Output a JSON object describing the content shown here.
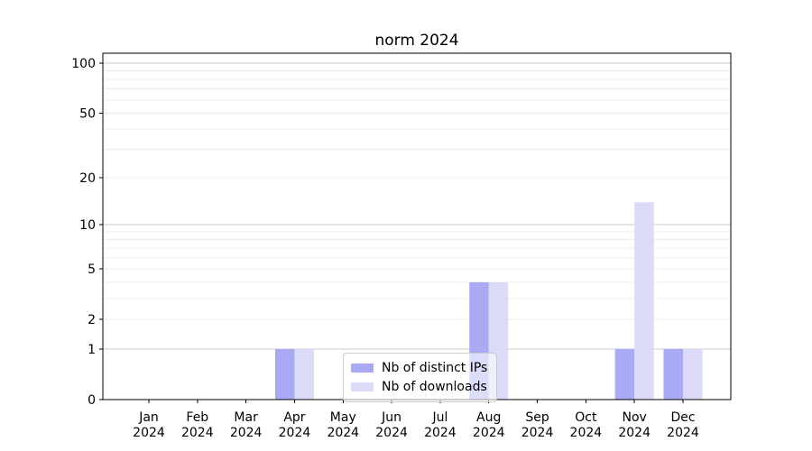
{
  "chart_data": {
    "type": "bar",
    "title": "norm 2024",
    "categories": [
      "Jan",
      "Feb",
      "Mar",
      "Apr",
      "May",
      "Jun",
      "Jul",
      "Aug",
      "Sep",
      "Oct",
      "Nov",
      "Dec"
    ],
    "x_year_label": "2024",
    "series": [
      {
        "name": "Nb of distinct IPs",
        "color": "#a9a9f4",
        "values": [
          0,
          0,
          0,
          1,
          0,
          0,
          0,
          4,
          0,
          0,
          1,
          1
        ]
      },
      {
        "name": "Nb of downloads",
        "color": "#dbdbf8",
        "values": [
          0,
          0,
          0,
          1,
          0,
          0,
          0,
          4,
          0,
          0,
          14,
          1
        ]
      }
    ],
    "xlabel": "",
    "ylabel": "",
    "y_scale": "log(1+x)",
    "y_ticks": [
      0,
      1,
      2,
      5,
      10,
      20,
      50,
      100
    ],
    "y_major_gridlines": [
      1,
      10,
      100
    ],
    "y_minor_gridlines": [
      2,
      3,
      4,
      5,
      6,
      7,
      8,
      9,
      20,
      30,
      40,
      50,
      60,
      70,
      80,
      90
    ],
    "ylim": [
      0,
      115
    ],
    "grid": true,
    "legend_position": "lower center-left inside plot"
  }
}
